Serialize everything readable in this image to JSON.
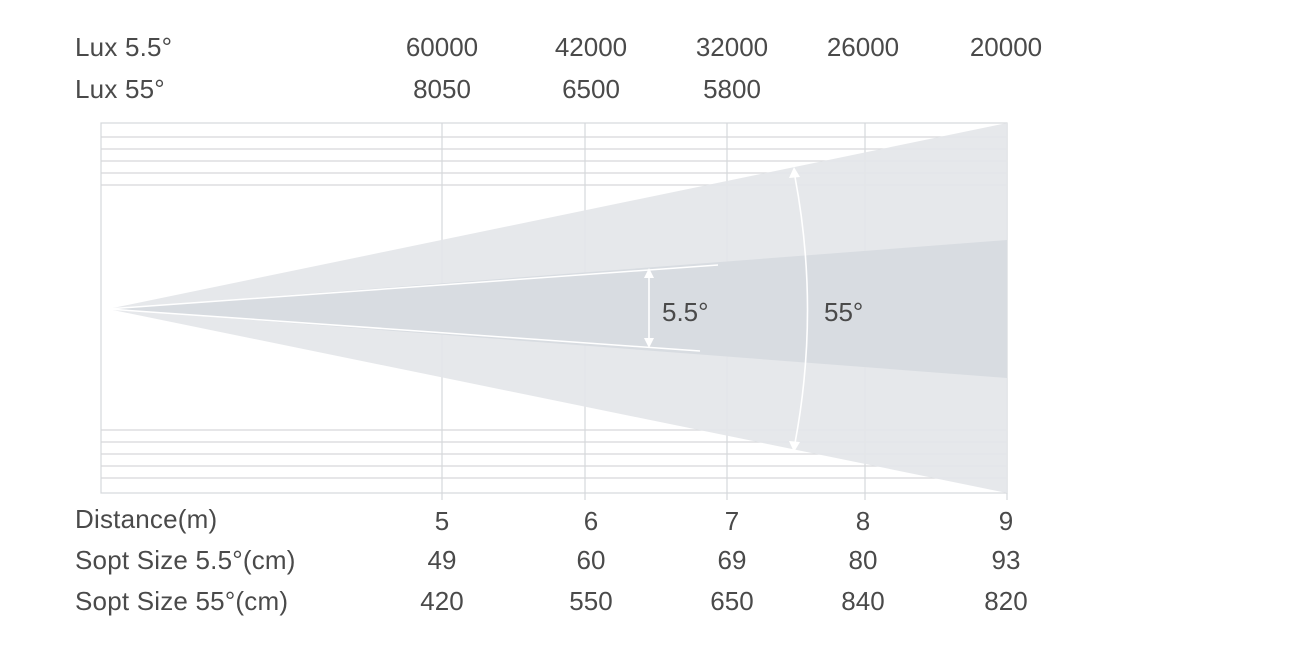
{
  "lux_rows": [
    {
      "label": "Lux 5.5°",
      "values": [
        "60000",
        "42000",
        "32000",
        "26000",
        "20000"
      ]
    },
    {
      "label": "Lux 55°",
      "values": [
        "8050",
        "6500",
        "5800",
        "",
        ""
      ]
    }
  ],
  "bottom_rows": [
    {
      "label": "Distance(m)",
      "values": [
        "5",
        "6",
        "7",
        "8",
        "9"
      ]
    },
    {
      "label": "Sopt Size 5.5°(cm)",
      "values": [
        "49",
        "60",
        "69",
        "80",
        "93"
      ]
    },
    {
      "label": "Sopt Size 55°(cm)",
      "values": [
        "420",
        "550",
        "650",
        "840",
        "820"
      ]
    }
  ],
  "angles": {
    "narrow": "5.5°",
    "wide": "55°"
  },
  "colors": {
    "wide_beam": "#e4e6e9",
    "narrow_beam": "#d7dbe0",
    "grid": "#d6d8db",
    "arrow": "#ffffff",
    "text": "#4a4a4a"
  }
}
